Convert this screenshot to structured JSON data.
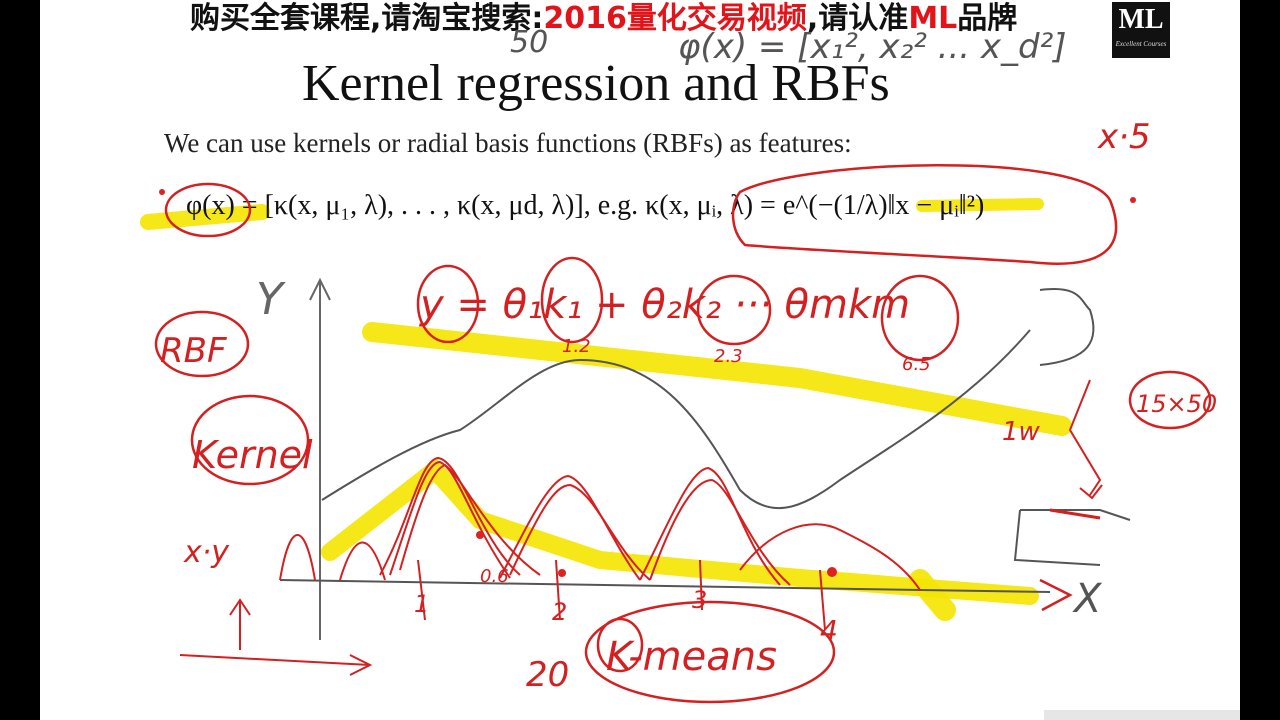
{
  "banner": {
    "part1": "购买全套课程,请淘宝搜索:",
    "part2": "2016量化交易视频",
    "part3": ",请认准",
    "part4": "ML",
    "part5": "品牌"
  },
  "logo": {
    "text": "ML",
    "tagline": "Excellent Courses"
  },
  "slide": {
    "title": "Kernel regression and RBFs",
    "subtitle": "We can use kernels or radial basis functions (RBFs) as features:",
    "formula": "φ(x) = [κ(x, μ₁, λ), . . . , κ(x, μd, λ)],    e.g. κ(x, μᵢ, λ) = e^(−(1/λ)‖x − μᵢ‖²)"
  },
  "annotations": {
    "phi": "φ(x) = [x₁², x₂² ... x_d²]",
    "fifty": "50",
    "x5": "x·5",
    "y_axis": "Y",
    "rbf": "RBF",
    "kernel": "Kernel",
    "eq": "y = θ₁k₁ + θ₂k₂ ··· θmkm",
    "w1": "1.2",
    "w2": "2.3",
    "wm": "6.5",
    "one_w": "1w",
    "size": "15×50",
    "xy": "x·y",
    "x_axis": "X",
    "t1": "1",
    "t2": "2",
    "t3": "3",
    "t4": "4",
    "twenty": "20",
    "kmeans": "K-means",
    "zero_six": "0.6"
  },
  "colors": {
    "ink_red": "#d42020",
    "highlight": "#f5e400",
    "banner_red": "#e2141a"
  }
}
